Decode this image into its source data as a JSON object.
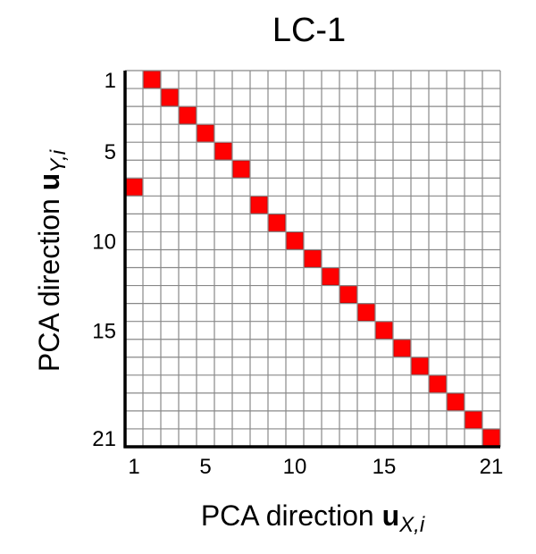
{
  "chart_data": {
    "type": "heatmap",
    "title": "LC-1",
    "xlabel": {
      "text": "PCA direction ",
      "vector": "u",
      "subscript": "X,i"
    },
    "ylabel": {
      "text": "PCA direction ",
      "vector": "u",
      "subscript": "Y,i"
    },
    "grid_size": 21,
    "x_ticks": [
      1,
      5,
      10,
      15,
      21
    ],
    "y_ticks": [
      1,
      5,
      10,
      15,
      21
    ],
    "grid": true,
    "y_axis_direction": "top-to-bottom",
    "highlight_color": "#ff0000",
    "grid_color": "#888888",
    "cells": [
      {
        "x": 2,
        "y": 1
      },
      {
        "x": 3,
        "y": 2
      },
      {
        "x": 4,
        "y": 3
      },
      {
        "x": 5,
        "y": 4
      },
      {
        "x": 6,
        "y": 5
      },
      {
        "x": 7,
        "y": 6
      },
      {
        "x": 1,
        "y": 7
      },
      {
        "x": 8,
        "y": 8
      },
      {
        "x": 9,
        "y": 9
      },
      {
        "x": 10,
        "y": 10
      },
      {
        "x": 11,
        "y": 11
      },
      {
        "x": 12,
        "y": 12
      },
      {
        "x": 13,
        "y": 13
      },
      {
        "x": 14,
        "y": 14
      },
      {
        "x": 15,
        "y": 15
      },
      {
        "x": 16,
        "y": 16
      },
      {
        "x": 17,
        "y": 17
      },
      {
        "x": 18,
        "y": 18
      },
      {
        "x": 19,
        "y": 19
      },
      {
        "x": 20,
        "y": 20
      },
      {
        "x": 21,
        "y": 21
      }
    ]
  }
}
